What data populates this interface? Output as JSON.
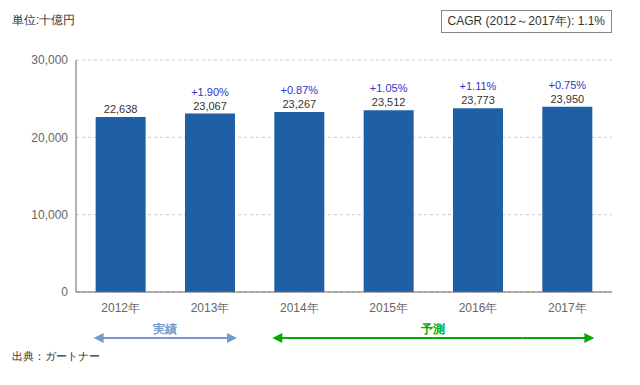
{
  "chart_data": {
    "type": "bar",
    "title": "単位:十億円",
    "categories": [
      "2012年",
      "2013年",
      "2014年",
      "2015年",
      "2016年",
      "2017年"
    ],
    "values": [
      22638,
      23067,
      23267,
      23512,
      23773,
      23950
    ],
    "value_labels": [
      "22,638",
      "23,067",
      "23,267",
      "23,512",
      "23,773",
      "23,950"
    ],
    "growth_labels": [
      null,
      "+1.90%",
      "+0.87%",
      "+1.05%",
      "+1.11%",
      "+0.75%"
    ],
    "color": "#1f5fa6",
    "ylim": [
      0,
      30000
    ],
    "yticks": [
      0,
      {
        "value": 10000,
        "label": "10,000"
      },
      {
        "value": 20000,
        "label": "20,000"
      },
      {
        "value": 30000,
        "label": "30,000"
      }
    ],
    "grid": true,
    "data_labels": true,
    "annotation": "CAGR (2012～2017年): 1.1%",
    "source": "出典：ガートナー",
    "periods": [
      {
        "label": "実績",
        "from": "2012年",
        "to": "2013年",
        "color": "#7799cc"
      },
      {
        "label": "予測",
        "from": "2014年",
        "to": "2017年",
        "color": "#00aa00"
      }
    ],
    "value_label_color": "#333333",
    "growth_label_color": "#3333cc"
  }
}
